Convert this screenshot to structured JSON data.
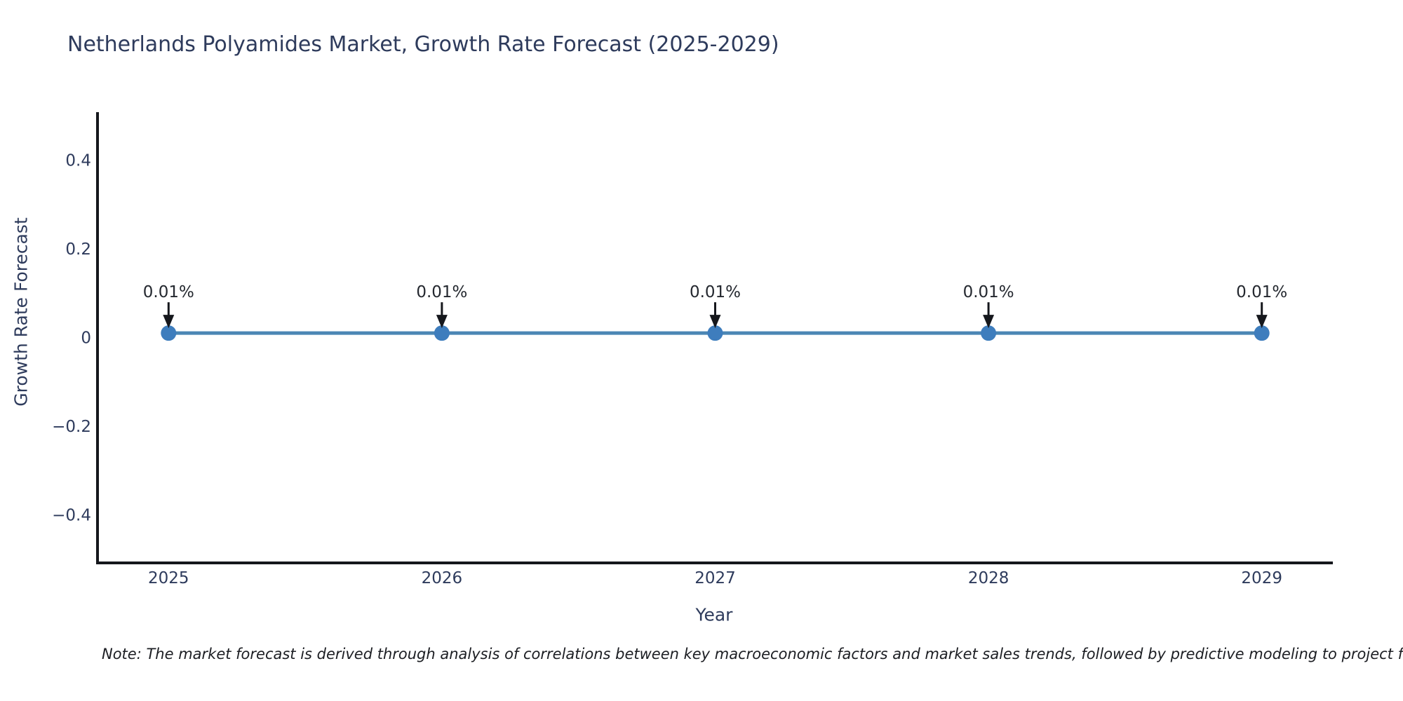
{
  "figure": {
    "note": "Note: The market forecast is derived through analysis of correlations between key macroeconomic factors and market sales trends, followed by predictive modeling to project future sa"
  },
  "chart_data": {
    "type": "line",
    "title": "Netherlands Polyamides Market, Growth Rate Forecast (2025-2029)",
    "xlabel": "Year",
    "ylabel": "Growth Rate Forecast",
    "x": [
      2025,
      2026,
      2027,
      2028,
      2029
    ],
    "categories": [
      "2025",
      "2026",
      "2027",
      "2028",
      "2029"
    ],
    "values": [
      0.01,
      0.01,
      0.01,
      0.01,
      0.01
    ],
    "point_labels": [
      "0.01%",
      "0.01%",
      "0.01%",
      "0.01%",
      "0.01%"
    ],
    "unit": "%",
    "xlim": [
      2024.74,
      2029.26
    ],
    "ylim": [
      -0.508,
      0.508
    ],
    "yticks": [
      0.4,
      0.2,
      0,
      -0.2,
      -0.4
    ],
    "ytick_labels": [
      "0.4",
      "0.2",
      "0",
      "−0.2",
      "−0.4"
    ],
    "grid": false,
    "legend": false,
    "annotation_style": "down-arrow",
    "colors": {
      "line": "#4b86b4",
      "marker": "#3e7dbd",
      "axis": "#15171c",
      "arrow": "#15171c",
      "text": "#2e3b5c",
      "annotation": "#24282f",
      "note": "#1c1e23",
      "background": "#ffffff"
    }
  }
}
